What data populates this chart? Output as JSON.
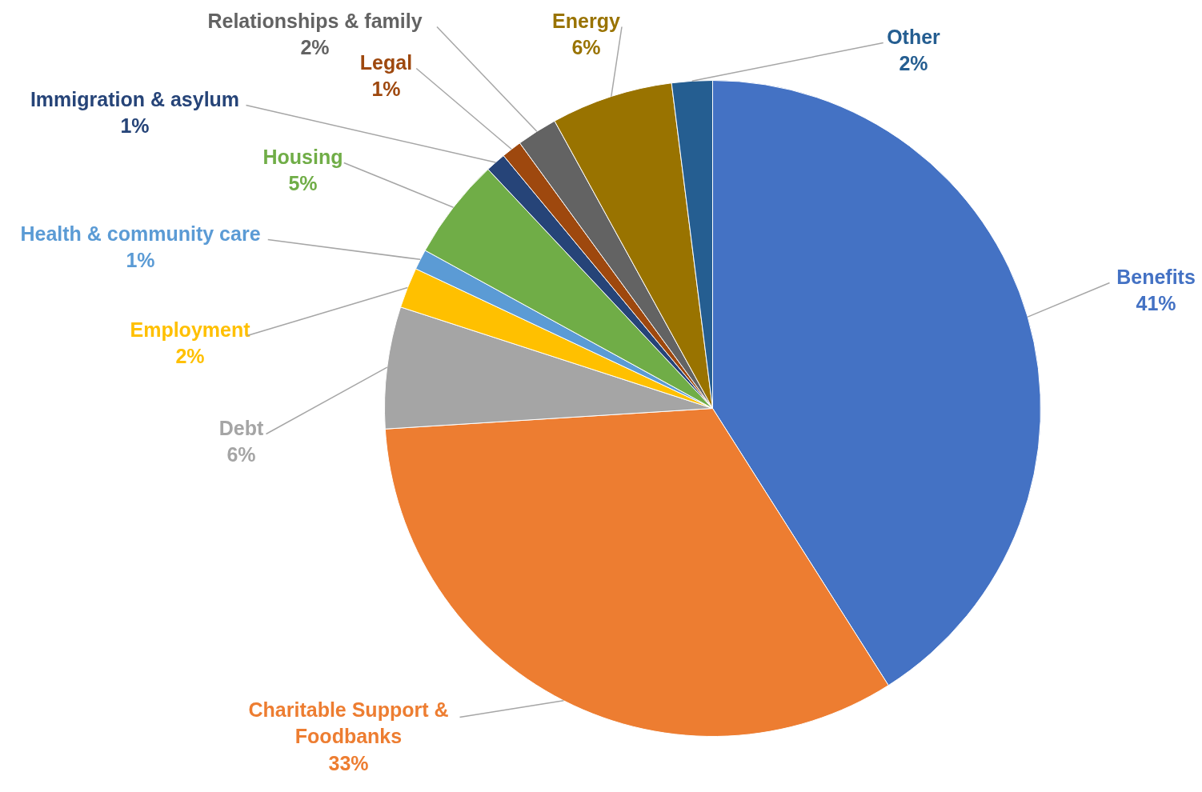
{
  "chart_data": {
    "type": "pie",
    "categories": [
      "Benefits",
      "Charitable Support &\nFoodbanks",
      "Debt",
      "Employment",
      "Health & community care",
      "Housing",
      "Immigration & asylum",
      "Legal",
      "Relationships & family",
      "Energy",
      "Other"
    ],
    "values": [
      41,
      33,
      6,
      2,
      1,
      5,
      1,
      1,
      2,
      6,
      2
    ],
    "colors": [
      "#4472c4",
      "#ed7d31",
      "#a5a5a5",
      "#ffc000",
      "#5b9bd5",
      "#70ad47",
      "#264478",
      "#9e480e",
      "#636363",
      "#997300",
      "#255e91"
    ],
    "value_labels": [
      "41%",
      "33%",
      "6%",
      "2%",
      "1%",
      "5%",
      "1%",
      "1%",
      "2%",
      "6%",
      "2%"
    ]
  }
}
